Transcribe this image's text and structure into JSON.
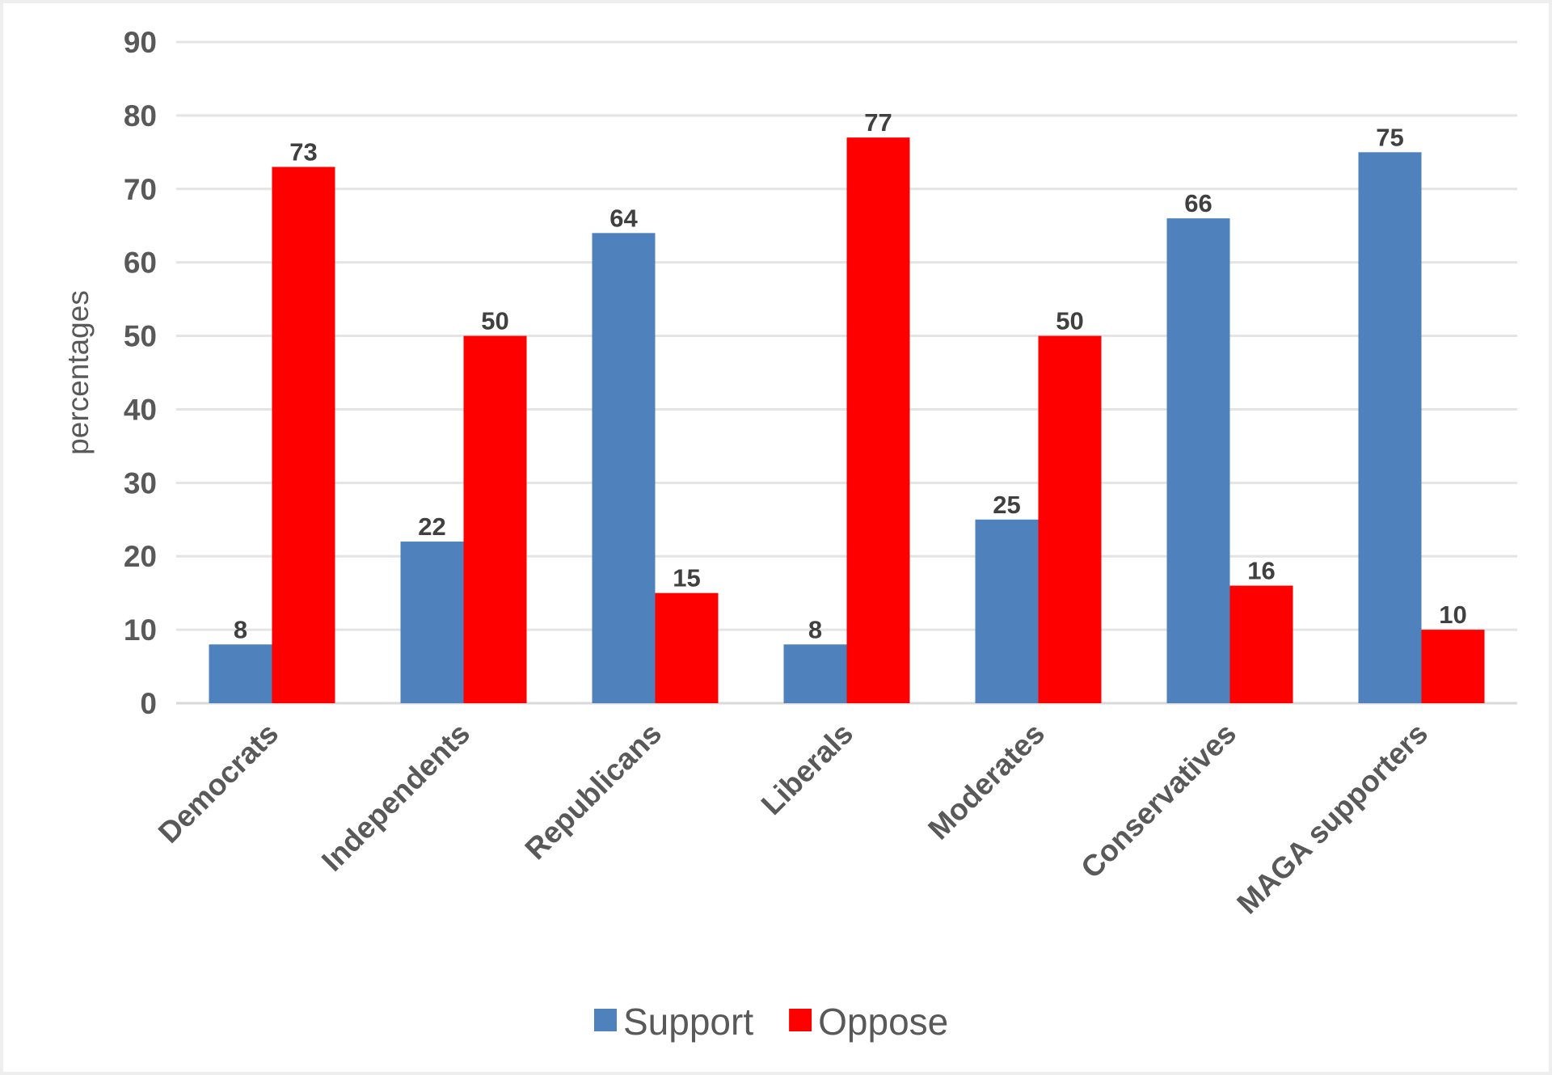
{
  "chart_data": {
    "type": "bar",
    "title": "",
    "xlabel": "",
    "ylabel": "percentages",
    "ylim": [
      0,
      90
    ],
    "yticks": [
      0,
      10,
      20,
      30,
      40,
      50,
      60,
      70,
      80,
      90
    ],
    "grid": true,
    "legend_position": "bottom",
    "categories": [
      "Democrats",
      "Independents",
      "Republicans",
      "Liberals",
      "Moderates",
      "Conservatives",
      "MAGA supporters"
    ],
    "series": [
      {
        "name": "Support",
        "color": "#4f81bd",
        "values": [
          8,
          22,
          64,
          8,
          25,
          66,
          75
        ]
      },
      {
        "name": "Oppose",
        "color": "#ff0000",
        "values": [
          73,
          50,
          15,
          77,
          50,
          16,
          10
        ]
      }
    ],
    "data_labels": true
  }
}
